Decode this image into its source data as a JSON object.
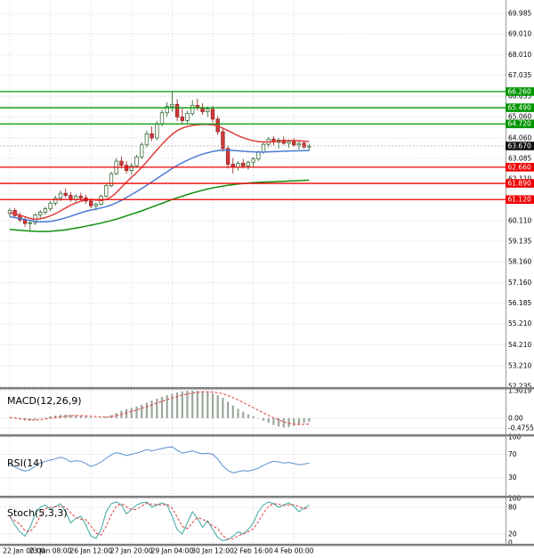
{
  "chart_data": {
    "type": "candlestick",
    "title": "",
    "x_axis": {
      "tick_labels": [
        "22 Jan 00:00",
        "23 Jan 08:00",
        "26 Jan 12:00",
        "27 Jan 20:00",
        "29 Jan 04:00",
        "30 Jan 12:00",
        "2 Feb 16:00",
        "4 Feb 00:00"
      ],
      "candles_per_tick": 8
    },
    "price_axis": {
      "ticks": [
        "69.985",
        "69.010",
        "68.010",
        "67.035",
        "66.035",
        "65.060",
        "64.060",
        "63.085",
        "62.110",
        "61.110",
        "60.110",
        "59.135",
        "58.160",
        "57.160",
        "56.185",
        "55.210",
        "54.210",
        "53.210",
        "52.235"
      ],
      "current_price": "63.670",
      "ylim": [
        52.19,
        70.45
      ]
    },
    "levels": {
      "resistance": [
        "66.260",
        "65.490",
        "64.720"
      ],
      "support": [
        "62.660",
        "61.890",
        "61.120"
      ]
    },
    "candles": [
      [
        60.45,
        60.7,
        60.3,
        60.6
      ],
      [
        60.6,
        60.72,
        60.28,
        60.35
      ],
      [
        60.35,
        60.5,
        60.05,
        60.15
      ],
      [
        60.15,
        60.28,
        59.82,
        59.98
      ],
      [
        59.98,
        60.1,
        59.58,
        60.02
      ],
      [
        60.02,
        60.45,
        59.9,
        60.38
      ],
      [
        60.38,
        60.62,
        60.22,
        60.52
      ],
      [
        60.52,
        60.78,
        60.4,
        60.68
      ],
      [
        60.68,
        61.05,
        60.55,
        60.95
      ],
      [
        60.95,
        61.3,
        60.82,
        61.18
      ],
      [
        61.18,
        61.55,
        61.05,
        61.42
      ],
      [
        61.42,
        61.65,
        61.2,
        61.32
      ],
      [
        61.32,
        61.48,
        61.02,
        61.12
      ],
      [
        61.12,
        61.38,
        60.95,
        61.28
      ],
      [
        61.28,
        61.45,
        61.08,
        61.2
      ],
      [
        61.2,
        61.35,
        60.92,
        61.05
      ],
      [
        61.05,
        61.18,
        60.7,
        60.82
      ],
      [
        60.82,
        60.98,
        60.6,
        60.9
      ],
      [
        60.9,
        61.35,
        60.85,
        61.28
      ],
      [
        61.28,
        61.85,
        61.22,
        61.78
      ],
      [
        61.78,
        62.45,
        61.7,
        62.35
      ],
      [
        62.35,
        63.1,
        62.28,
        62.95
      ],
      [
        62.95,
        63.18,
        62.6,
        62.75
      ],
      [
        62.75,
        62.95,
        62.35,
        62.5
      ],
      [
        62.5,
        62.85,
        62.3,
        62.72
      ],
      [
        62.72,
        63.25,
        62.65,
        63.15
      ],
      [
        63.15,
        63.85,
        63.05,
        63.72
      ],
      [
        63.72,
        64.4,
        63.6,
        64.25
      ],
      [
        64.25,
        64.6,
        63.9,
        64.05
      ],
      [
        64.05,
        64.85,
        63.95,
        64.72
      ],
      [
        64.72,
        65.4,
        64.6,
        65.25
      ],
      [
        65.25,
        65.75,
        65.05,
        65.55
      ],
      [
        65.55,
        66.26,
        65.3,
        65.65
      ],
      [
        65.65,
        65.9,
        64.85,
        65.05
      ],
      [
        65.05,
        65.45,
        64.7,
        64.88
      ],
      [
        64.88,
        65.35,
        64.75,
        65.22
      ],
      [
        65.22,
        65.85,
        65.1,
        65.6
      ],
      [
        65.6,
        65.92,
        65.35,
        65.48
      ],
      [
        65.48,
        65.7,
        65.15,
        65.3
      ],
      [
        65.3,
        65.55,
        65.05,
        65.42
      ],
      [
        65.42,
        65.58,
        64.8,
        64.95
      ],
      [
        64.95,
        65.1,
        64.2,
        64.35
      ],
      [
        64.35,
        64.5,
        63.4,
        63.55
      ],
      [
        63.55,
        63.7,
        62.6,
        62.8
      ],
      [
        62.8,
        63.1,
        62.35,
        62.65
      ],
      [
        62.65,
        62.95,
        62.5,
        62.85
      ],
      [
        62.85,
        63.05,
        62.6,
        62.72
      ],
      [
        62.72,
        62.98,
        62.55,
        62.9
      ],
      [
        62.9,
        63.15,
        62.7,
        63.05
      ],
      [
        63.05,
        63.45,
        62.95,
        63.38
      ],
      [
        63.38,
        63.85,
        63.3,
        63.75
      ],
      [
        63.75,
        64.1,
        63.6,
        64.0
      ],
      [
        64.0,
        64.15,
        63.7,
        63.85
      ],
      [
        63.85,
        64.05,
        63.55,
        63.95
      ],
      [
        63.95,
        64.12,
        63.72,
        63.8
      ],
      [
        63.8,
        63.98,
        63.58,
        63.88
      ],
      [
        63.88,
        64.05,
        63.62,
        63.72
      ],
      [
        63.72,
        63.9,
        63.5,
        63.8
      ],
      [
        63.8,
        63.92,
        63.55,
        63.62
      ],
      [
        63.62,
        63.78,
        63.45,
        63.67
      ]
    ],
    "moving_averages": [
      {
        "name": "ma-fast-red",
        "color": "#e03c3c",
        "values": [
          60.5,
          60.45,
          60.38,
          60.3,
          60.22,
          60.18,
          60.2,
          60.26,
          60.34,
          60.45,
          60.58,
          60.72,
          60.85,
          60.95,
          61.04,
          61.1,
          61.12,
          61.1,
          61.08,
          61.12,
          61.25,
          61.45,
          61.7,
          61.95,
          62.18,
          62.4,
          62.65,
          62.92,
          63.2,
          63.48,
          63.75,
          64.0,
          64.22,
          64.4,
          64.52,
          64.6,
          64.65,
          64.68,
          64.7,
          64.7,
          64.68,
          64.62,
          64.52,
          64.4,
          64.28,
          64.16,
          64.06,
          63.98,
          63.92,
          63.88,
          63.86,
          63.86,
          63.88,
          63.9,
          63.92,
          63.93,
          63.93,
          63.92,
          63.9,
          63.88
        ]
      },
      {
        "name": "ma-mid-blue",
        "color": "#4a7bd4",
        "values": [
          60.3,
          60.26,
          60.22,
          60.17,
          60.12,
          60.08,
          60.06,
          60.06,
          60.08,
          60.12,
          60.18,
          60.25,
          60.33,
          60.41,
          60.49,
          60.56,
          60.62,
          60.67,
          60.72,
          60.78,
          60.86,
          60.96,
          61.08,
          61.22,
          61.36,
          61.5,
          61.65,
          61.8,
          61.96,
          62.12,
          62.28,
          62.44,
          62.6,
          62.74,
          62.87,
          62.99,
          63.1,
          63.2,
          63.28,
          63.35,
          63.41,
          63.45,
          63.47,
          63.47,
          63.46,
          63.44,
          63.42,
          63.4,
          63.39,
          63.38,
          63.38,
          63.39,
          63.4,
          63.41,
          63.42,
          63.43,
          63.44,
          63.44,
          63.45,
          63.45
        ]
      },
      {
        "name": "ma-slow-green",
        "color": "#0f8f0f",
        "values": [
          59.7,
          59.68,
          59.66,
          59.64,
          59.62,
          59.61,
          59.6,
          59.6,
          59.61,
          59.63,
          59.65,
          59.68,
          59.72,
          59.76,
          59.8,
          59.85,
          59.9,
          59.95,
          60.0,
          60.06,
          60.12,
          60.19,
          60.26,
          60.34,
          60.42,
          60.5,
          60.58,
          60.67,
          60.76,
          60.85,
          60.94,
          61.03,
          61.12,
          61.2,
          61.28,
          61.36,
          61.43,
          61.5,
          61.56,
          61.62,
          61.67,
          61.72,
          61.76,
          61.8,
          61.83,
          61.86,
          61.88,
          61.9,
          61.92,
          61.94,
          61.95,
          61.96,
          61.97,
          61.98,
          61.99,
          62.0,
          62.01,
          62.02,
          62.03,
          62.04
        ]
      }
    ],
    "indicators": {
      "macd": {
        "label": "MACD(12,26,9)",
        "axis_ticks": [
          "1.3019",
          "0.00",
          "-0.4755"
        ],
        "histogram": [
          0.02,
          -0.02,
          -0.06,
          -0.1,
          -0.12,
          -0.08,
          -0.02,
          0.03,
          0.08,
          0.12,
          0.15,
          0.17,
          0.16,
          0.14,
          0.11,
          0.08,
          0.04,
          0.01,
          0.02,
          0.06,
          0.14,
          0.24,
          0.34,
          0.42,
          0.48,
          0.55,
          0.63,
          0.72,
          0.82,
          0.92,
          1.0,
          1.08,
          1.15,
          1.21,
          1.26,
          1.29,
          1.3,
          1.29,
          1.27,
          1.23,
          1.17,
          1.08,
          0.95,
          0.78,
          0.6,
          0.44,
          0.3,
          0.18,
          0.08,
          -0.02,
          -0.12,
          -0.22,
          -0.32,
          -0.4,
          -0.44,
          -0.42,
          -0.36,
          -0.28,
          -0.22,
          -0.18
        ],
        "signal": [
          0.03,
          0.01,
          -0.02,
          -0.05,
          -0.08,
          -0.09,
          -0.07,
          -0.04,
          0.0,
          0.03,
          0.06,
          0.09,
          0.11,
          0.12,
          0.12,
          0.11,
          0.09,
          0.07,
          0.06,
          0.06,
          0.08,
          0.12,
          0.18,
          0.25,
          0.32,
          0.39,
          0.46,
          0.54,
          0.62,
          0.71,
          0.79,
          0.87,
          0.95,
          1.02,
          1.09,
          1.14,
          1.19,
          1.22,
          1.24,
          1.24,
          1.23,
          1.2,
          1.15,
          1.07,
          0.97,
          0.86,
          0.74,
          0.62,
          0.49,
          0.37,
          0.25,
          0.13,
          0.02,
          -0.08,
          -0.17,
          -0.24,
          -0.28,
          -0.3,
          -0.29,
          -0.27
        ]
      },
      "rsi": {
        "label": "RSI(14)",
        "axis_ticks": [
          "100",
          "70",
          "30"
        ],
        "values": [
          52,
          48,
          44,
          41,
          43,
          50,
          55,
          58,
          60,
          62,
          65,
          62,
          57,
          59,
          58,
          54,
          49,
          52,
          57,
          63,
          69,
          73,
          71,
          68,
          70,
          72,
          75,
          78,
          76,
          78,
          80,
          82,
          83,
          77,
          72,
          74,
          76,
          73,
          71,
          72,
          70,
          62,
          50,
          42,
          38,
          40,
          42,
          41,
          43,
          46,
          51,
          55,
          58,
          57,
          55,
          56,
          54,
          52,
          53,
          55
        ]
      },
      "stoch": {
        "label": "Stoch(5,3,3)",
        "axis_ticks": [
          "100",
          "80",
          "20",
          "0"
        ],
        "k": [
          60,
          40,
          25,
          15,
          35,
          65,
          80,
          85,
          75,
          82,
          88,
          70,
          45,
          55,
          60,
          40,
          15,
          10,
          30,
          70,
          88,
          92,
          85,
          65,
          75,
          85,
          90,
          92,
          80,
          85,
          90,
          85,
          60,
          30,
          20,
          45,
          70,
          55,
          35,
          50,
          30,
          12,
          5,
          8,
          15,
          25,
          20,
          30,
          45,
          70,
          85,
          92,
          88,
          80,
          85,
          90,
          82,
          70,
          78,
          85
        ],
        "d": [
          58,
          50,
          42,
          27,
          25,
          38,
          60,
          77,
          80,
          81,
          82,
          80,
          68,
          57,
          53,
          52,
          38,
          22,
          18,
          37,
          63,
          83,
          88,
          81,
          75,
          75,
          83,
          89,
          87,
          86,
          85,
          87,
          78,
          58,
          37,
          32,
          45,
          57,
          53,
          47,
          38,
          32,
          16,
          8,
          9,
          16,
          20,
          25,
          32,
          48,
          67,
          82,
          88,
          87,
          84,
          85,
          86,
          81,
          77,
          78
        ]
      }
    },
    "colors": {
      "grid": "#c6cde0",
      "candle_up_fill": "#ffffff",
      "candle_up_border": "#225a22",
      "candle_down_fill": "#d23b3b",
      "candle_down_border": "#8c1a1a",
      "resistance": "#009600",
      "support": "#ee0000",
      "current_price_bg": "#111111",
      "macd_histogram": "#9aa79a",
      "macd_signal": "#e03c3c",
      "rsi_line": "#5a8fd0",
      "stoch_k": "#3aa7a0",
      "stoch_d": "#e03c3c",
      "separator": "#7f7f7f"
    }
  }
}
